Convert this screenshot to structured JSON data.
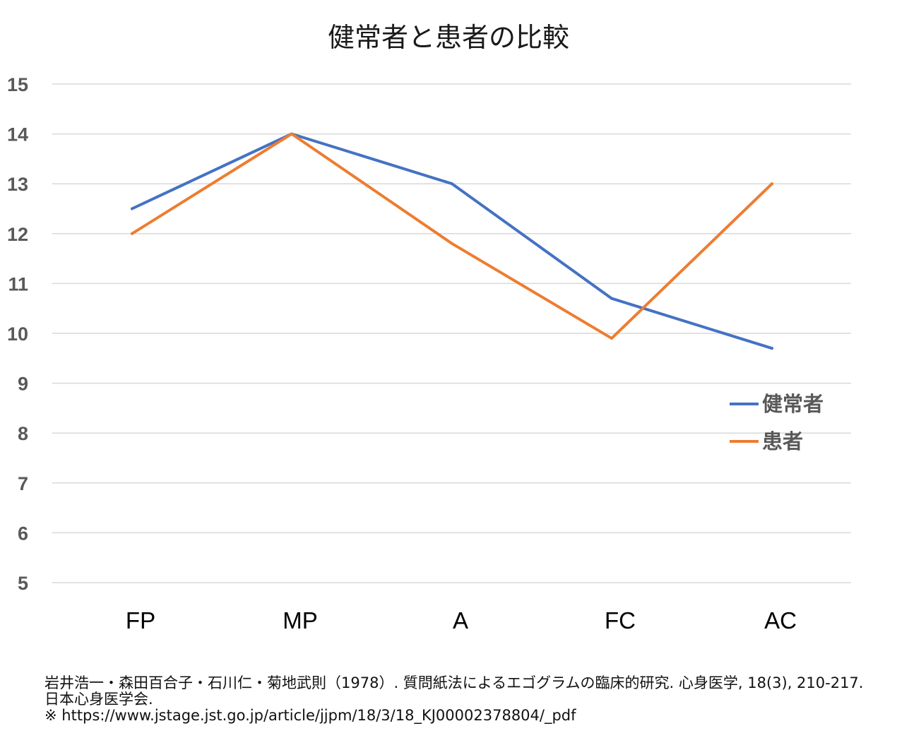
{
  "chart_data": {
    "type": "line",
    "title": "健常者と患者の比較",
    "categories": [
      "FP",
      "MP",
      "A",
      "FC",
      "AC"
    ],
    "series": [
      {
        "name": "健常者",
        "color": "#4472C4",
        "values": [
          12.5,
          14,
          13,
          10.7,
          9.7
        ]
      },
      {
        "name": "患者",
        "color": "#ED7D31",
        "values": [
          12,
          14,
          11.8,
          9.9,
          13
        ]
      }
    ],
    "ylim": [
      5,
      15
    ],
    "yticks": [
      "5",
      "6",
      "7",
      "8",
      "9",
      "10",
      "11",
      "12",
      "13",
      "14",
      "15"
    ],
    "xlabel": "",
    "ylabel": "",
    "grid": true,
    "legend_position": "right"
  },
  "source": {
    "line1": "岩井浩一・森田百合子・石川仁・菊地武則（1978）. 質問紙法によるエゴグラムの臨床的研究. 心身医学, 18(3), 210-217.",
    "line2": "日本心身医学会.",
    "line3": "※ https://www.jstage.jst.go.jp/article/jjpm/18/3/18_KJ00002378804/_pdf"
  }
}
